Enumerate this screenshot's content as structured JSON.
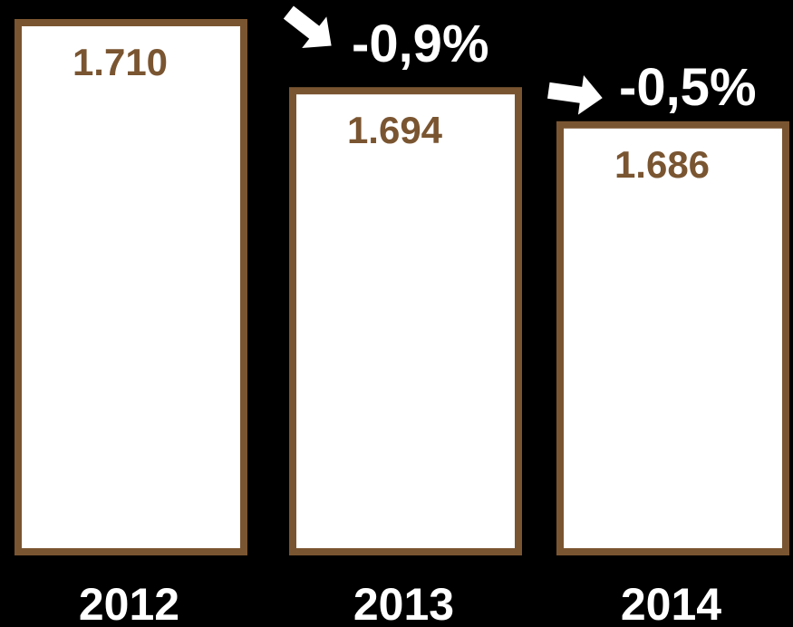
{
  "chart_data": {
    "type": "bar",
    "categories": [
      "2012",
      "2013",
      "2014"
    ],
    "values": [
      1710,
      1694,
      1686
    ],
    "value_labels": [
      "1.710",
      "1.694",
      "1.686"
    ],
    "changes": [
      {
        "from": "2012",
        "to": "2013",
        "label": "-0,9%",
        "direction": "down",
        "icon": "arrow-down-right-icon"
      },
      {
        "from": "2013",
        "to": "2014",
        "label": "-0,5%",
        "direction": "down",
        "icon": "arrow-right-icon"
      }
    ],
    "title": "",
    "xlabel": "",
    "ylabel": "",
    "grid": false,
    "legend": "none"
  },
  "colors": {
    "background": "#000000",
    "bar_fill": "#ffffff",
    "bar_border": "#7a5531",
    "value_text": "#7a5531",
    "category_text": "#ffffff",
    "change_text": "#ffffff"
  }
}
